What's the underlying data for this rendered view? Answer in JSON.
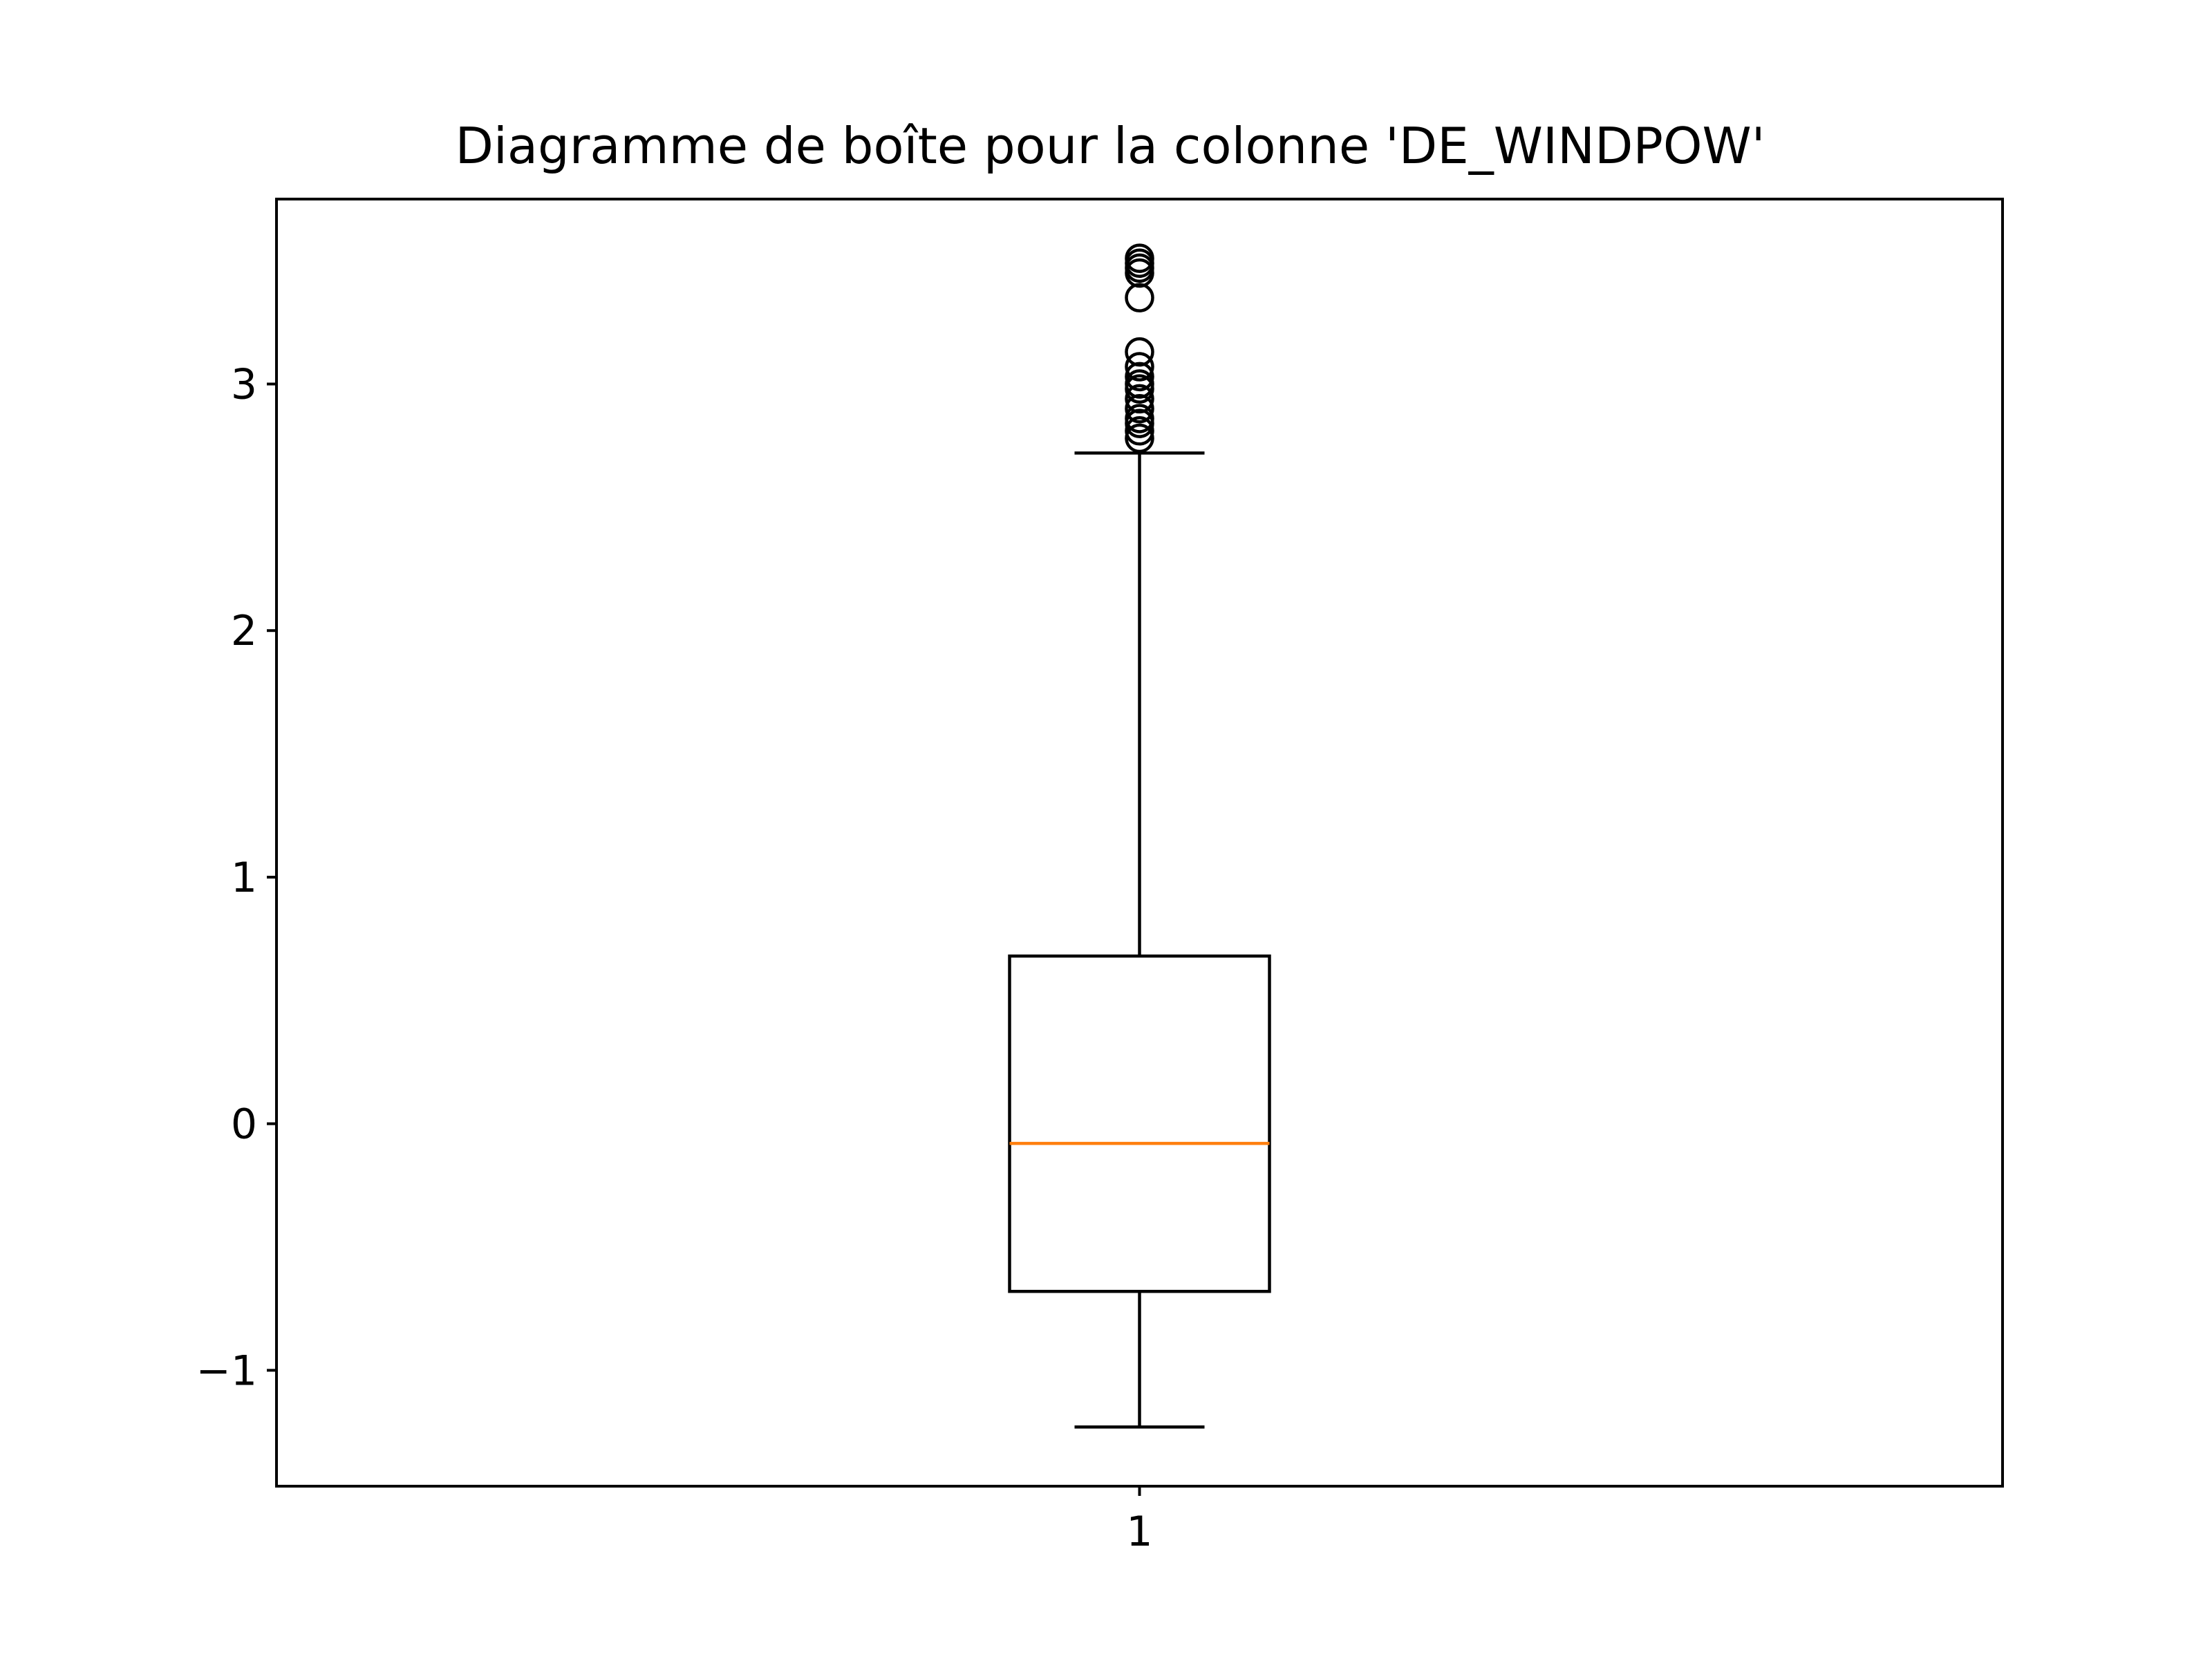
{
  "chart_data": {
    "type": "box",
    "title": "Diagramme de boîte pour la colonne 'DE_WINDPOW'",
    "xlabel": "",
    "ylabel": "",
    "categories": [
      "1"
    ],
    "ylim": [
      -1.47,
      3.75
    ],
    "yticks": [
      -1,
      0,
      1,
      2,
      3
    ],
    "ytick_labels": [
      "−1",
      "0",
      "1",
      "2",
      "3"
    ],
    "xtick_labels": [
      "1"
    ],
    "grid": false,
    "boxes": [
      {
        "name": "1",
        "whisker_low": -1.23,
        "q1": -0.68,
        "median": -0.08,
        "q3": 0.68,
        "whisker_high": 2.72,
        "outliers": [
          2.78,
          2.81,
          2.84,
          2.86,
          2.9,
          2.94,
          2.98,
          3.0,
          3.03,
          3.07,
          3.13,
          3.35,
          3.45,
          3.47,
          3.49,
          3.51
        ]
      }
    ],
    "colors": {
      "box": "#000000",
      "median": "#ff7f0e",
      "outlier": "#000000"
    }
  }
}
